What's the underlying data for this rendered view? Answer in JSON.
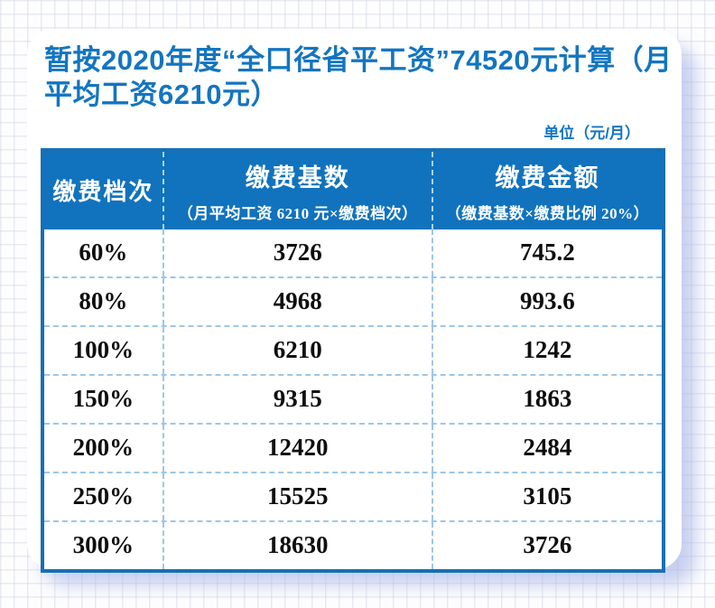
{
  "title": "暂按2020年度“全口径省平工资”74520元计算（月平均工资6210元）",
  "unit_note": "单位（元/月）",
  "table": {
    "header": {
      "tier": "缴费档次",
      "base_main": "缴费基数",
      "base_sub": "（月平均工资 6210 元×缴费档次）",
      "amount_main": "缴费金额",
      "amount_sub": "（缴费基数×缴费比例 20%）"
    },
    "rows": [
      {
        "tier": "60%",
        "base": "3726",
        "amount": "745.2"
      },
      {
        "tier": "80%",
        "base": "4968",
        "amount": "993.6"
      },
      {
        "tier": "100%",
        "base": "6210",
        "amount": "1242"
      },
      {
        "tier": "150%",
        "base": "9315",
        "amount": "1863"
      },
      {
        "tier": "200%",
        "base": "12420",
        "amount": "2484"
      },
      {
        "tier": "250%",
        "base": "15525",
        "amount": "3105"
      },
      {
        "tier": "300%",
        "base": "18630",
        "amount": "3726"
      }
    ]
  },
  "colors": {
    "header_blue": "#1173bd",
    "title_blue": "#1375c0",
    "table_border_blue": "#176fb4",
    "dashed_line_blue": "#9dc6e8",
    "card_shadow": "#a8b4e6"
  },
  "chart_data": {
    "type": "table",
    "title": "暂按2020年度“全口径省平工资”74520元计算（月平均工资6210元）",
    "unit": "元/月",
    "columns": [
      "缴费档次",
      "缴费基数（月平均工资 6210 元×缴费档次）",
      "缴费金额（缴费基数×缴费比例 20%）"
    ],
    "rows": [
      [
        "60%",
        3726,
        745.2
      ],
      [
        "80%",
        4968,
        993.6
      ],
      [
        "100%",
        6210,
        1242
      ],
      [
        "150%",
        9315,
        1863
      ],
      [
        "200%",
        12420,
        2484
      ],
      [
        "250%",
        15525,
        3105
      ],
      [
        "300%",
        18630,
        3726
      ]
    ]
  }
}
